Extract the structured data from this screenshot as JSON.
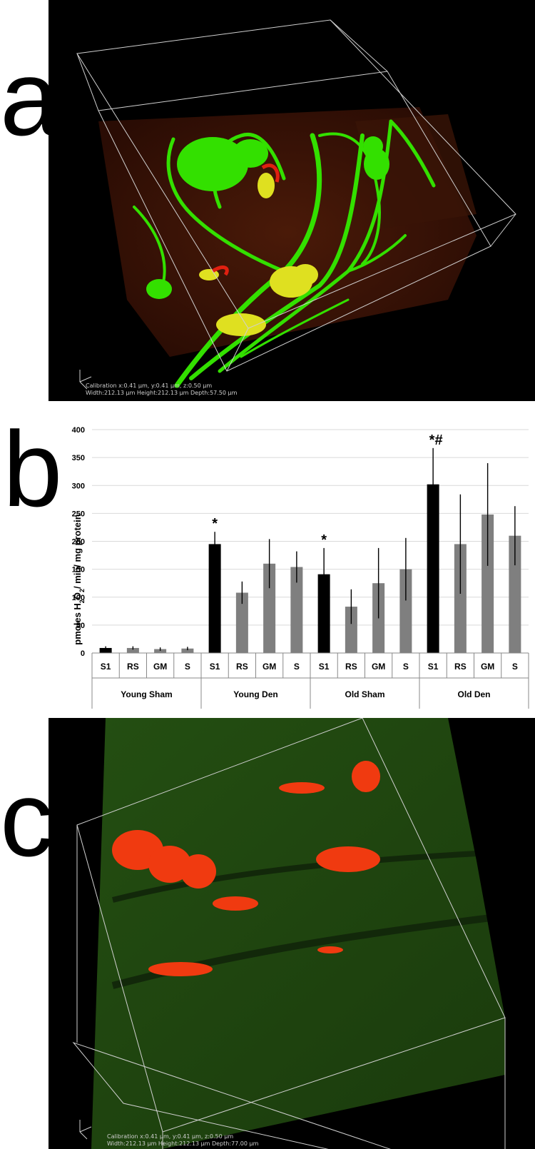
{
  "panel_a": {
    "letter": "a",
    "calibration": "Calibration x:0.41 µm, y:0.41 µm, z:0.50 µm",
    "dimensions": "Width:212.13 µm Height:212.13 µm Depth:57.50 µm",
    "colors": {
      "background": "#000000",
      "tissue": "#3a1408",
      "nerve": "#33e000",
      "endplate": "#dfe020",
      "red": "#e02010"
    }
  },
  "panel_c": {
    "letter": "c",
    "calibration": "Calibration x:0.41 µm, y:0.41 µm, z:0.50 µm",
    "dimensions": "Width:212.13 µm Height:212.13 µm Depth:77.00 µm",
    "colors": {
      "background": "#000000",
      "tissue": "#1f4a10",
      "endplate": "#f03a10"
    }
  },
  "panel_b": {
    "letter": "b",
    "chart_data": {
      "type": "bar",
      "ylabel_parts": [
        "pmoles H",
        "2",
        "O",
        "2",
        "/ min/ mg protein"
      ],
      "ylim": [
        0,
        400
      ],
      "yticks": [
        0,
        50,
        100,
        150,
        200,
        250,
        300,
        350,
        400
      ],
      "grid": true,
      "groups": [
        {
          "name": "Young Sham",
          "bars": [
            {
              "category": "S1",
              "value": 9,
              "err_up": 3,
              "err_down": 3,
              "color": "#000000",
              "annotation": ""
            },
            {
              "category": "RS",
              "value": 9,
              "err_up": 3,
              "err_down": 3,
              "color": "#7f7f7f",
              "annotation": ""
            },
            {
              "category": "GM",
              "value": 7,
              "err_up": 3,
              "err_down": 3,
              "color": "#7f7f7f",
              "annotation": ""
            },
            {
              "category": "S",
              "value": 8,
              "err_up": 3,
              "err_down": 3,
              "color": "#7f7f7f",
              "annotation": ""
            }
          ]
        },
        {
          "name": "Young Den",
          "bars": [
            {
              "category": "S1",
              "value": 195,
              "err_up": 22,
              "err_down": 22,
              "color": "#000000",
              "annotation": "*"
            },
            {
              "category": "RS",
              "value": 108,
              "err_up": 20,
              "err_down": 20,
              "color": "#7f7f7f",
              "annotation": ""
            },
            {
              "category": "GM",
              "value": 160,
              "err_up": 44,
              "err_down": 44,
              "color": "#7f7f7f",
              "annotation": ""
            },
            {
              "category": "S",
              "value": 154,
              "err_up": 28,
              "err_down": 28,
              "color": "#7f7f7f",
              "annotation": ""
            }
          ]
        },
        {
          "name": "Old Sham",
          "bars": [
            {
              "category": "S1",
              "value": 141,
              "err_up": 47,
              "err_down": 47,
              "color": "#000000",
              "annotation": "*"
            },
            {
              "category": "RS",
              "value": 83,
              "err_up": 31,
              "err_down": 31,
              "color": "#7f7f7f",
              "annotation": ""
            },
            {
              "category": "GM",
              "value": 125,
              "err_up": 63,
              "err_down": 63,
              "color": "#7f7f7f",
              "annotation": ""
            },
            {
              "category": "S",
              "value": 150,
              "err_up": 56,
              "err_down": 56,
              "color": "#7f7f7f",
              "annotation": ""
            }
          ]
        },
        {
          "name": "Old Den",
          "bars": [
            {
              "category": "S1",
              "value": 302,
              "err_up": 65,
              "err_down": 65,
              "color": "#000000",
              "annotation": "*#"
            },
            {
              "category": "RS",
              "value": 195,
              "err_up": 89,
              "err_down": 89,
              "color": "#7f7f7f",
              "annotation": ""
            },
            {
              "category": "GM",
              "value": 248,
              "err_up": 92,
              "err_down": 92,
              "color": "#7f7f7f",
              "annotation": ""
            },
            {
              "category": "S",
              "value": 210,
              "err_up": 53,
              "err_down": 53,
              "color": "#7f7f7f",
              "annotation": ""
            }
          ]
        }
      ]
    }
  }
}
